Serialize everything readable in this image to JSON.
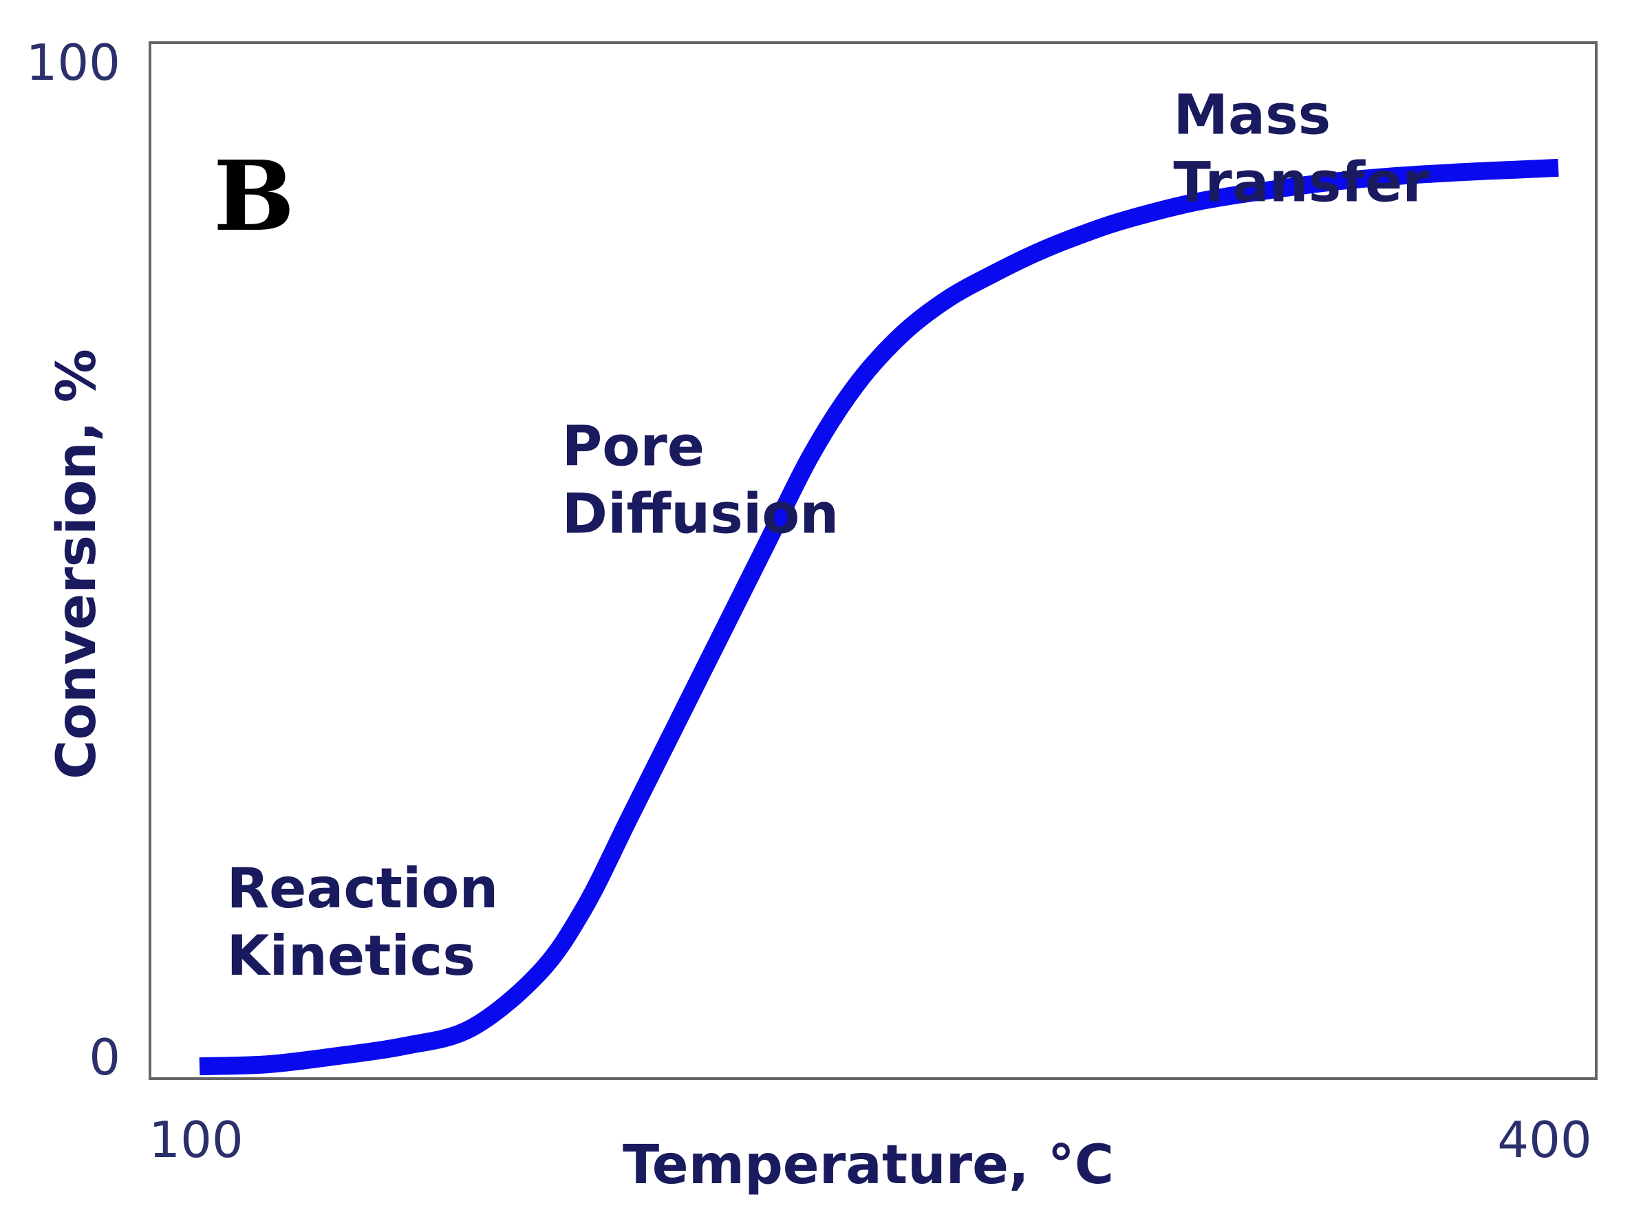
{
  "panel_label": "B",
  "colors": {
    "curve": "#0a0aef",
    "text": "#1a1a5e",
    "frame": "#666666"
  },
  "chart_data": {
    "type": "line",
    "title": "",
    "xlabel": "Temperature, °C",
    "ylabel": "Conversion, %",
    "xlim": [
      100,
      400
    ],
    "ylim": [
      0,
      100
    ],
    "x_ticks": [
      "100",
      "400"
    ],
    "y_ticks": [
      "0",
      "100"
    ],
    "grid": false,
    "series": [
      {
        "x": [
          100,
          115,
          130,
          145,
          160,
          175,
          185,
          195,
          205,
          215,
          225,
          235,
          245,
          255,
          265,
          275,
          285,
          295,
          305,
          320,
          335,
          350,
          365,
          380,
          390,
          400
        ],
        "y": [
          0.2,
          0.4,
          1.2,
          2.2,
          4.0,
          9.5,
          16,
          25,
          34,
          43,
          52,
          61,
          68,
          73,
          76.5,
          79,
          81.2,
          83,
          84.5,
          86.2,
          87.3,
          88.2,
          88.8,
          89.2,
          89.4,
          89.6
        ]
      }
    ],
    "annotations": [
      {
        "lines": [
          "Reaction",
          "Kinetics"
        ],
        "x": 106,
        "y": 16
      },
      {
        "lines": [
          "Pore",
          "Diffusion"
        ],
        "x": 180,
        "y": 60
      },
      {
        "lines": [
          "Mass",
          "Transfer"
        ],
        "x": 315,
        "y": 93
      }
    ]
  }
}
